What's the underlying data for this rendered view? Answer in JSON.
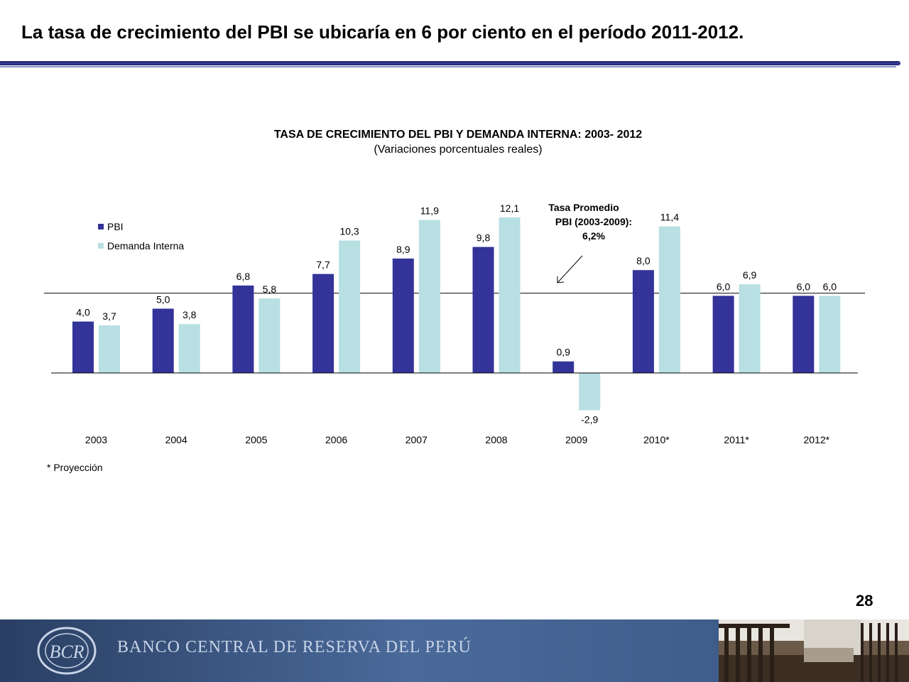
{
  "slide": {
    "title": "La tasa de crecimiento del PBI se ubicaría en 6 por ciento en el período 2011-2012.",
    "footnote": "* Proyección",
    "page_number": "28"
  },
  "annotation": {
    "lines": [
      "Tasa Promedio",
      "PBI (2003-2009):",
      "6,2%"
    ],
    "average_value": 6.2
  },
  "footer": {
    "bank_name": "BANCO CENTRAL DE RESERVA DEL PERÚ",
    "logo_letters": "BCR"
  },
  "colors": {
    "pbi": "#333399",
    "demanda": "#b8e0e3",
    "footer_text": "#c8d4e8"
  },
  "chart_data": {
    "type": "bar",
    "title": "TASA DE CRECIMIENTO DEL PBI Y DEMANDA INTERNA: 2003- 2012",
    "subtitle": "(Variaciones porcentuales reales)",
    "categories": [
      "2003",
      "2004",
      "2005",
      "2006",
      "2007",
      "2008",
      "2009",
      "2010*",
      "2011*",
      "2012*"
    ],
    "series": [
      {
        "name": "PBI",
        "values": [
          4.0,
          5.0,
          6.8,
          7.7,
          8.9,
          9.8,
          0.9,
          8.0,
          6.0,
          6.0
        ],
        "labels": [
          "4,0",
          "5,0",
          "6,8",
          "7,7",
          "8,9",
          "9,8",
          "0,9",
          "8,0",
          "6,0",
          "6,0"
        ]
      },
      {
        "name": "Demanda Interna",
        "values": [
          3.7,
          3.8,
          5.8,
          10.3,
          11.9,
          12.1,
          -2.9,
          11.4,
          6.9,
          6.0
        ],
        "labels": [
          "3,7",
          "3,8",
          "5,8",
          "10,3",
          "11,9",
          "12,1",
          "-2,9",
          "11,4",
          "6,9",
          "6,0"
        ]
      }
    ],
    "reference_line": 6.2,
    "legend_position": "top-left",
    "ylim": [
      -3,
      13
    ]
  }
}
